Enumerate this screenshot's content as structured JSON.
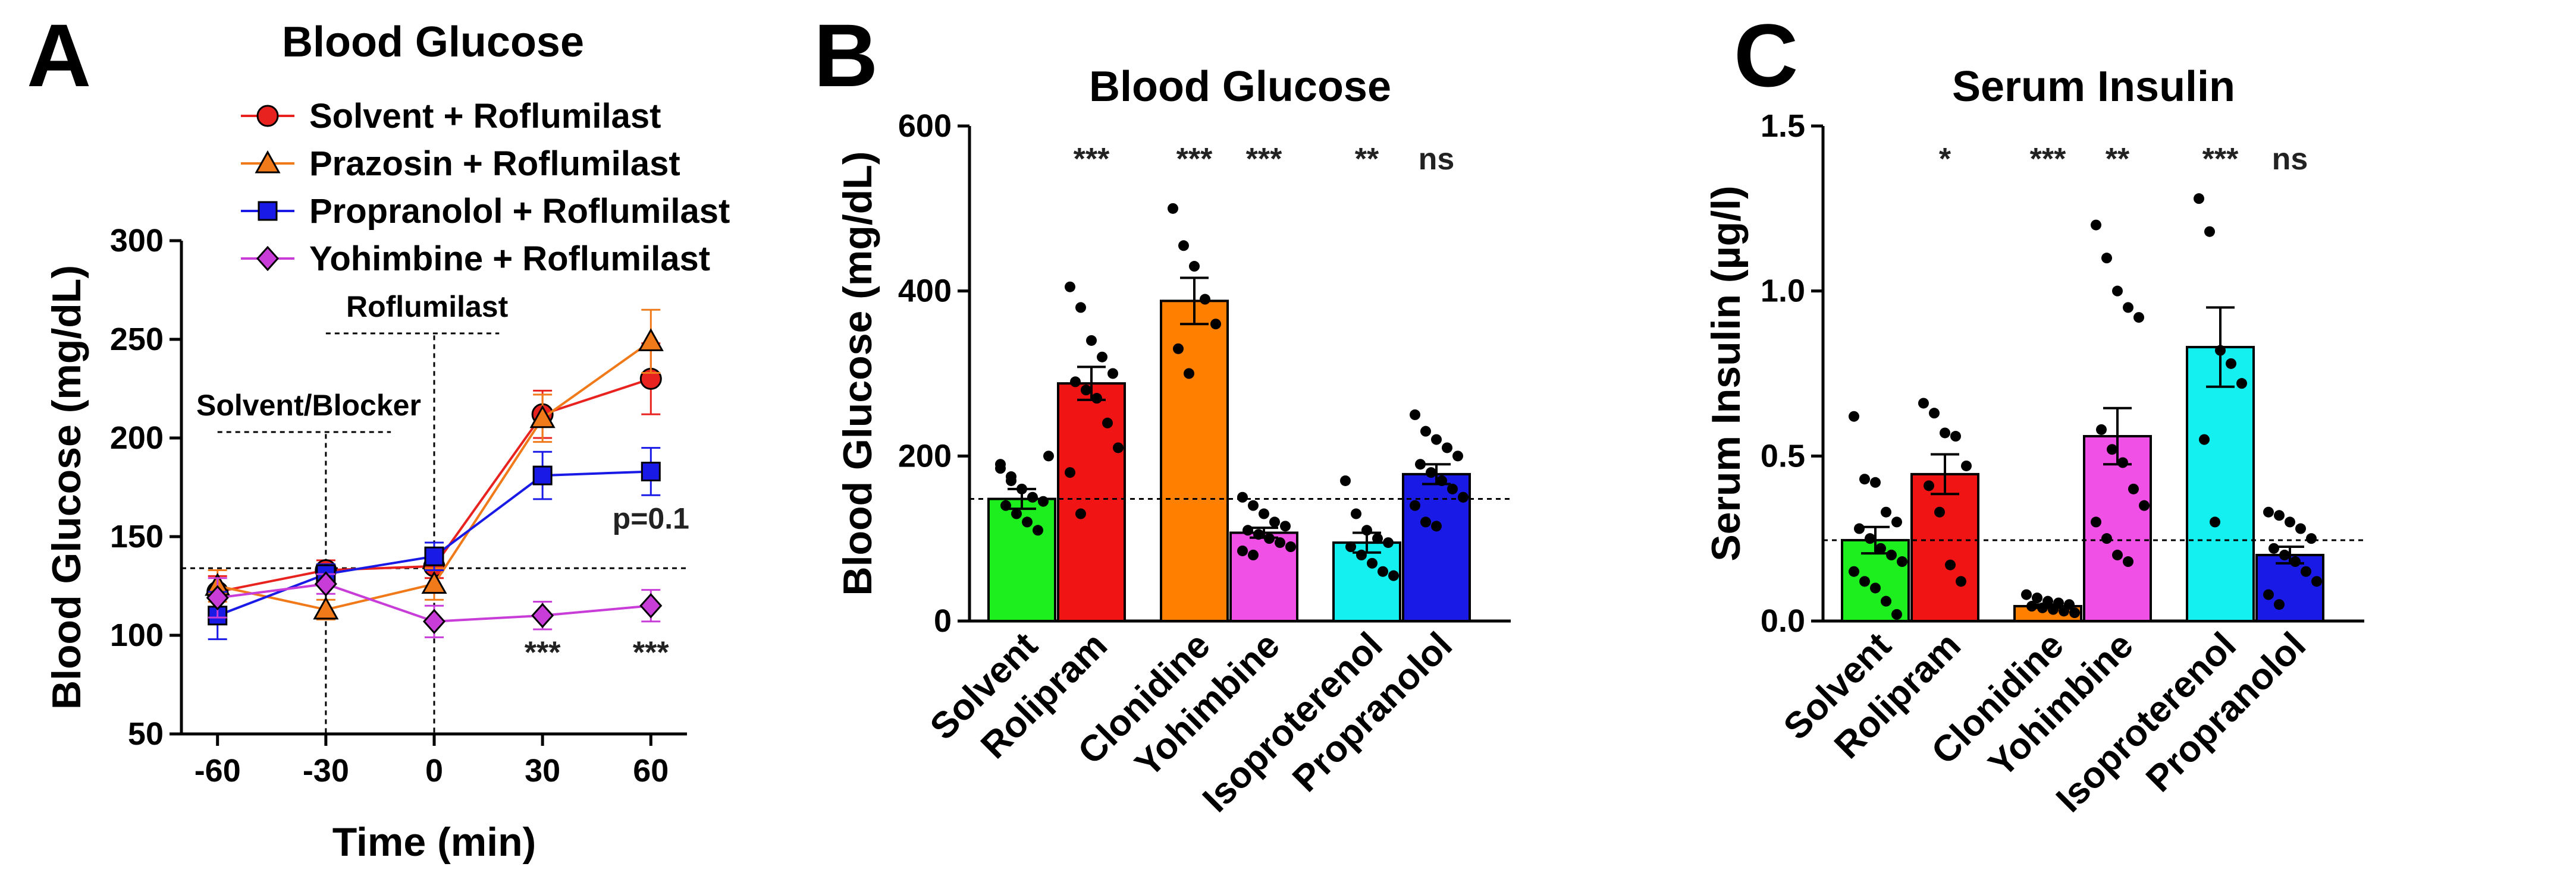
{
  "chart_data": [
    {
      "panel": "A",
      "type": "line",
      "title": "Blood Glucose",
      "xlabel": "Time (min)",
      "ylabel": "Blood Glucose (mg/dL)",
      "x": [
        -60,
        -30,
        0,
        30,
        60
      ],
      "xticks": [
        "-60",
        "-30",
        "0",
        "30",
        "60"
      ],
      "ylim": [
        50,
        300
      ],
      "yticks": [
        50,
        100,
        150,
        200,
        250,
        300
      ],
      "series": [
        {
          "name": "Solvent + Roflumilast",
          "color": "#e8231f",
          "marker": "circle",
          "values": [
            122,
            133,
            135,
            212,
            230
          ],
          "errors": [
            8,
            5,
            6,
            12,
            18
          ]
        },
        {
          "name": "Prazosin + Roflumilast",
          "color": "#f07a1a",
          "marker": "triangle",
          "values": [
            125,
            113,
            126,
            210,
            249
          ],
          "errors": [
            8,
            5,
            8,
            12,
            16
          ]
        },
        {
          "name": "Propranolol + Roflumilast",
          "color": "#1a1ae6",
          "marker": "square",
          "values": [
            110,
            131,
            140,
            181,
            183
          ],
          "errors": [
            12,
            5,
            7,
            12,
            12
          ]
        },
        {
          "name": "Yohimbine + Roflumilast",
          "color": "#c83cd8",
          "marker": "diamond",
          "values": [
            119,
            126,
            107,
            110,
            115
          ],
          "errors": [
            10,
            5,
            8,
            7,
            8
          ]
        }
      ],
      "reference_line": 134,
      "annotations": {
        "solvent_blocker": "Solvent/Blocker",
        "roflumilast": "Roflumilast",
        "sig_30": "***",
        "sig_60": "***",
        "p_value": "p=0.1"
      }
    },
    {
      "panel": "B",
      "type": "bar",
      "title": "Blood Glucose",
      "ylabel": "Blood Glucose (mg/dL)",
      "categories": [
        "Solvent",
        "Rolipram",
        "Clonidine",
        "Yohimbine",
        "Isoproterenol",
        "Propranolol"
      ],
      "values": [
        148,
        288,
        388,
        107,
        95,
        178
      ],
      "errors": [
        12,
        20,
        28,
        6,
        12,
        12
      ],
      "colors": [
        "#1dee1d",
        "#f01414",
        "#ff8000",
        "#f050e6",
        "#14f0f0",
        "#1a1ae6"
      ],
      "significance": [
        "",
        "***",
        "***",
        "***",
        "**",
        "ns"
      ],
      "ylim": [
        0,
        600
      ],
      "yticks": [
        0,
        200,
        400,
        600
      ],
      "reference_line": 148,
      "points": [
        [
          185,
          175,
          160,
          150,
          145,
          140,
          130,
          120,
          110,
          200,
          190,
          170
        ],
        [
          405,
          380,
          340,
          320,
          300,
          290,
          280,
          270,
          240,
          210,
          180,
          130
        ],
        [
          500,
          455,
          430,
          390,
          360,
          330,
          300
        ],
        [
          150,
          140,
          130,
          120,
          115,
          110,
          105,
          100,
          95,
          90,
          85,
          80
        ],
        [
          170,
          130,
          110,
          100,
          95,
          90,
          80,
          70,
          60,
          55
        ],
        [
          250,
          230,
          220,
          210,
          200,
          190,
          180,
          170,
          160,
          150,
          140,
          120,
          115
        ]
      ]
    },
    {
      "panel": "C",
      "type": "bar",
      "title": "Serum Insulin",
      "ylabel": "Serum Insulin (µg/l)",
      "categories": [
        "Solvent",
        "Rolipram",
        "Clonidine",
        "Yohimbine",
        "Isoproterenol",
        "Propranolol"
      ],
      "values": [
        0.245,
        0.445,
        0.045,
        0.56,
        0.83,
        0.2
      ],
      "errors": [
        0.04,
        0.06,
        0.005,
        0.085,
        0.12,
        0.025
      ],
      "colors": [
        "#1dee1d",
        "#f01414",
        "#ff8000",
        "#f050e6",
        "#14f0f0",
        "#1a1ae6"
      ],
      "significance": [
        "",
        "*",
        "***",
        "**",
        "***",
        "ns"
      ],
      "ylim": [
        0,
        1.5
      ],
      "yticks": [
        0.0,
        0.5,
        1.0,
        1.5
      ],
      "ytick_labels": [
        "0.0",
        "0.5",
        "1.0",
        "1.5"
      ],
      "reference_line": 0.245,
      "points": [
        [
          0.62,
          0.43,
          0.42,
          0.33,
          0.3,
          0.28,
          0.25,
          0.22,
          0.2,
          0.18,
          0.15,
          0.12,
          0.1,
          0.06,
          0.02
        ],
        [
          0.66,
          0.63,
          0.57,
          0.56,
          0.47,
          0.41,
          0.33,
          0.17,
          0.12
        ],
        [
          0.08,
          0.07,
          0.06,
          0.055,
          0.05,
          0.045,
          0.04,
          0.035,
          0.03,
          0.025
        ],
        [
          1.2,
          1.1,
          1.0,
          0.95,
          0.92,
          0.58,
          0.52,
          0.48,
          0.4,
          0.35,
          0.3,
          0.25,
          0.2,
          0.18
        ],
        [
          1.28,
          1.18,
          0.82,
          0.78,
          0.72,
          0.55,
          0.3
        ],
        [
          0.33,
          0.32,
          0.3,
          0.28,
          0.25,
          0.22,
          0.2,
          0.18,
          0.15,
          0.12,
          0.08,
          0.05
        ]
      ]
    }
  ]
}
